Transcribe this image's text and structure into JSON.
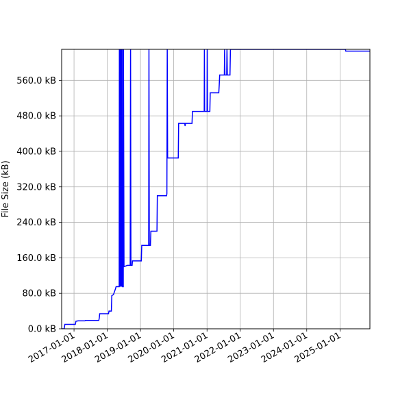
{
  "chart_data": {
    "type": "line",
    "title": "",
    "xlabel": "",
    "ylabel": "File Size (kB)",
    "x_type": "date",
    "xlim": [
      "2016-08-18",
      "2025-11-25"
    ],
    "ylim": [
      0,
      630
    ],
    "grid": true,
    "line_color": "#0000ff",
    "x_ticks": [
      "2017-01-01",
      "2018-01-01",
      "2019-01-01",
      "2020-01-01",
      "2021-01-01",
      "2022-01-01",
      "2023-01-01",
      "2024-01-01",
      "2025-01-01"
    ],
    "y_ticks": [
      0,
      80,
      160,
      240,
      320,
      400,
      480,
      560
    ],
    "y_tick_labels": [
      "0.0 kB",
      "80.0 kB",
      "160.0 kB",
      "240.0 kB",
      "320.0 kB",
      "400.0 kB",
      "480.0 kB",
      "560.0 kB"
    ],
    "series": [
      {
        "name": "",
        "points": [
          [
            "2016-08-20",
            0
          ],
          [
            "2016-09-15",
            0
          ],
          [
            "2016-09-22",
            10
          ],
          [
            "2017-01-15",
            10
          ],
          [
            "2017-01-22",
            17
          ],
          [
            "2017-02-15",
            18
          ],
          [
            "2017-05-01",
            18
          ],
          [
            "2017-05-08",
            19
          ],
          [
            "2017-09-30",
            19
          ],
          [
            "2017-10-05",
            24
          ],
          [
            "2017-10-10",
            34
          ],
          [
            "2018-01-15",
            34
          ],
          [
            "2018-01-20",
            40
          ],
          [
            "2018-02-15",
            40
          ],
          [
            "2018-02-20",
            75
          ],
          [
            "2018-03-10",
            77
          ],
          [
            "2018-04-01",
            90
          ],
          [
            "2018-04-08",
            95
          ],
          [
            "2018-05-12",
            95
          ],
          [
            "2018-05-14",
            630
          ],
          [
            "2018-05-18",
            95
          ],
          [
            "2018-05-24",
            630
          ],
          [
            "2018-05-28",
            95
          ],
          [
            "2018-06-03",
            630
          ],
          [
            "2018-06-08",
            95
          ],
          [
            "2018-06-14",
            630
          ],
          [
            "2018-06-18",
            95
          ],
          [
            "2018-06-26",
            95
          ],
          [
            "2018-06-28",
            630
          ],
          [
            "2018-07-04",
            140
          ],
          [
            "2018-08-10",
            143
          ],
          [
            "2018-09-10",
            143
          ],
          [
            "2018-09-14",
            630
          ],
          [
            "2018-09-18",
            143
          ],
          [
            "2018-10-01",
            143
          ],
          [
            "2018-10-05",
            153
          ],
          [
            "2019-01-10",
            153
          ],
          [
            "2019-01-15",
            188
          ],
          [
            "2019-04-01",
            188
          ],
          [
            "2019-04-04",
            630
          ],
          [
            "2019-04-08",
            188
          ],
          [
            "2019-04-20",
            188
          ],
          [
            "2019-04-25",
            220
          ],
          [
            "2019-07-01",
            220
          ],
          [
            "2019-07-05",
            300
          ],
          [
            "2019-10-15",
            300
          ],
          [
            "2019-10-18",
            305
          ],
          [
            "2019-10-22",
            630
          ],
          [
            "2019-10-26",
            385
          ],
          [
            "2020-02-20",
            385
          ],
          [
            "2020-02-24",
            463
          ],
          [
            "2020-05-01",
            463
          ],
          [
            "2020-05-05",
            457
          ],
          [
            "2020-05-09",
            463
          ],
          [
            "2020-07-20",
            463
          ],
          [
            "2020-07-25",
            490
          ],
          [
            "2020-12-01",
            490
          ],
          [
            "2020-12-03",
            630
          ],
          [
            "2020-12-06",
            490
          ],
          [
            "2021-01-01",
            490
          ],
          [
            "2021-01-03",
            630
          ],
          [
            "2021-01-06",
            490
          ],
          [
            "2021-02-01",
            490
          ],
          [
            "2021-02-05",
            532
          ],
          [
            "2021-05-10",
            532
          ],
          [
            "2021-05-15",
            550
          ],
          [
            "2021-05-20",
            572
          ],
          [
            "2021-07-10",
            572
          ],
          [
            "2021-07-13",
            630
          ],
          [
            "2021-07-17",
            572
          ],
          [
            "2021-08-05",
            572
          ],
          [
            "2021-08-08",
            630
          ],
          [
            "2021-08-12",
            572
          ],
          [
            "2021-09-10",
            572
          ],
          [
            "2021-09-15",
            630
          ],
          [
            "2021-12-01",
            630
          ],
          [
            "2022-01-01",
            630
          ],
          [
            "2025-03-01",
            630
          ],
          [
            "2025-03-05",
            626
          ],
          [
            "2025-11-25",
            626
          ]
        ]
      }
    ]
  }
}
